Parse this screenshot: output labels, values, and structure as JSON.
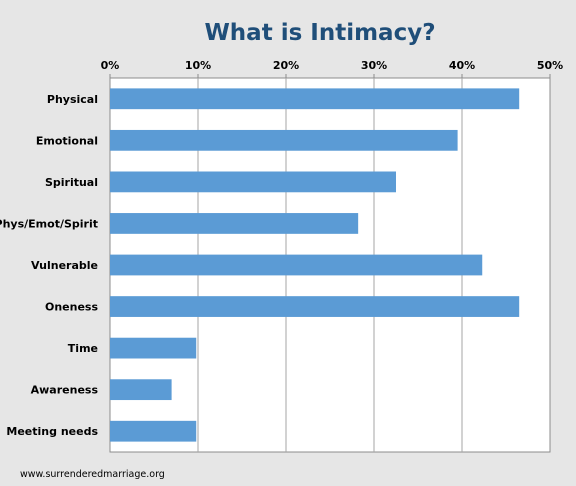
{
  "chart_data": {
    "type": "bar",
    "orientation": "horizontal",
    "title": "What is Intimacy?",
    "categories": [
      "Physical",
      "Emotional",
      "Spiritual",
      "Phys/Emot/Spirit",
      "Vulnerable",
      "Oneness",
      "Time",
      "Awareness",
      "Meeting needs"
    ],
    "values": [
      46.5,
      39.5,
      32.5,
      28.2,
      42.3,
      46.5,
      9.8,
      7.0,
      9.8
    ],
    "value_unit": "%",
    "xlim": [
      0,
      50
    ],
    "x_ticks": [
      "0%",
      "10%",
      "20%",
      "30%",
      "40%",
      "50%"
    ],
    "x_axis_position": "top",
    "grid": true,
    "bar_color": "#5b9bd5",
    "background_color": "#e6e6e6",
    "plot_background_color": "#ffffff",
    "title_color": "#1f4e79"
  },
  "source": "www.surrenderedmarriage.org"
}
